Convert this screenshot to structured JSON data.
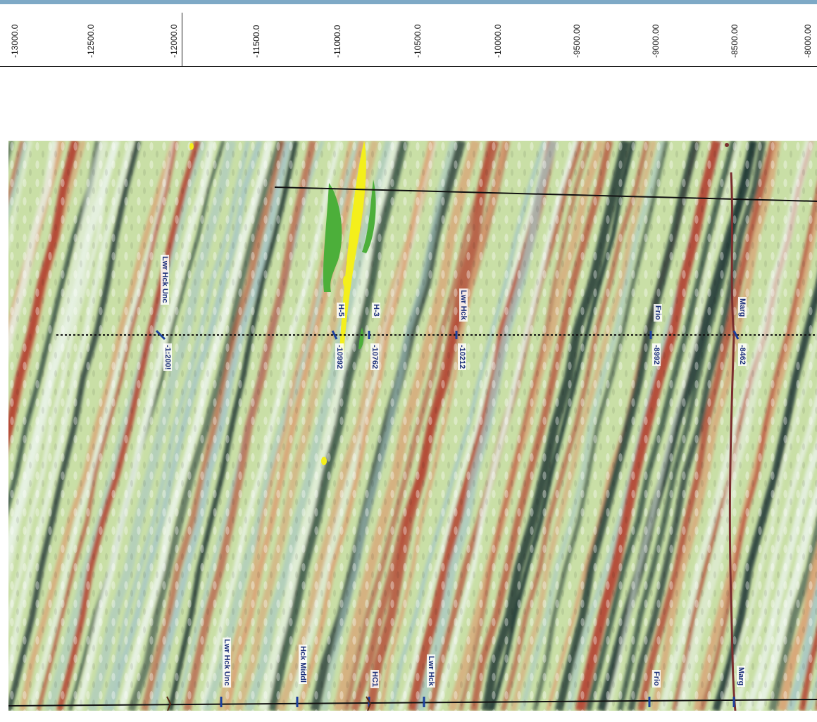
{
  "ruler": {
    "ticks": [
      "-13000.0",
      "-12500.0",
      "-12000.0",
      "-11500.0",
      "-11000.0",
      "-10500.0",
      "-10000.0",
      "-9500.00",
      "-9000.00",
      "-8500.00",
      "-8000.00"
    ]
  },
  "horizons_center": [
    {
      "name": "Lwr Hck Unc",
      "depth": "-1:200!"
    },
    {
      "name": "H-5",
      "depth": "-10992"
    },
    {
      "name": "H-3",
      "depth": "-10762"
    },
    {
      "name": "Lwr Hck",
      "depth": "-10212"
    },
    {
      "name": "Frio",
      "depth": "-8992"
    },
    {
      "name": "Marg",
      "depth": "-8462"
    }
  ],
  "horizons_bottom": [
    "Lwr Hck Unc",
    "Hck Middl",
    "HC1",
    "Lwr Hck",
    "Frio",
    "Marg"
  ],
  "colors": {
    "seismic_positive": "#b3412f",
    "seismic_negative": "#1f3634",
    "seismic_mid": "#c9dfa6",
    "bright_spot": "#f4ef1b",
    "bright_rim": "#4caf3a",
    "well_track": "#7a2e2e",
    "horizon_line": "#111111"
  }
}
